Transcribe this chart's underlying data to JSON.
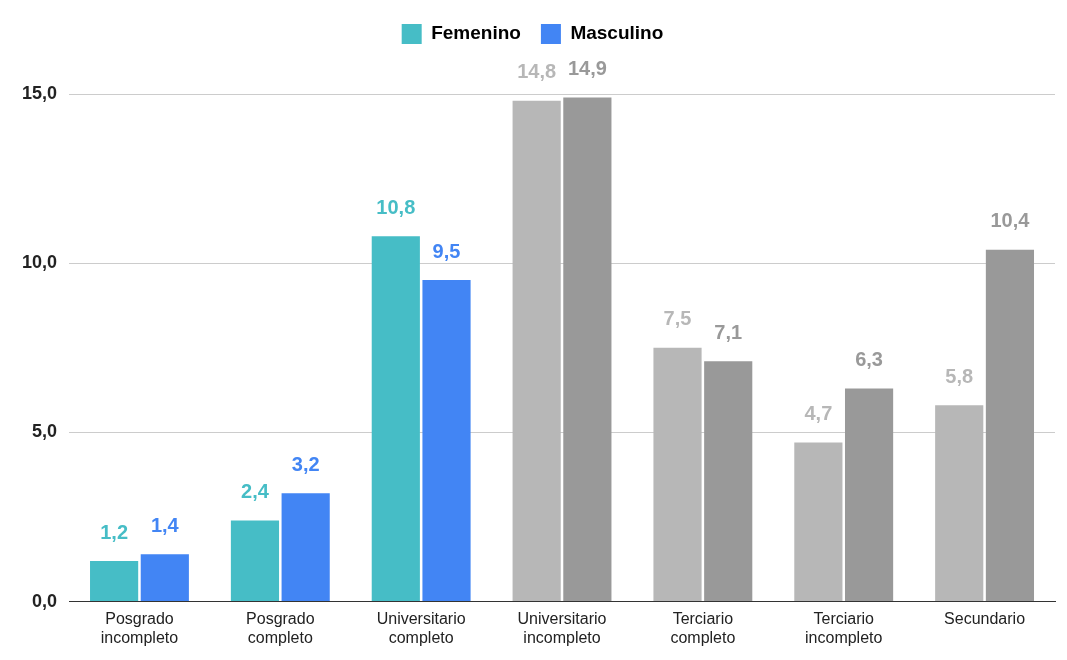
{
  "chart_data": {
    "type": "bar",
    "categories": [
      "Posgrado incompleto",
      "Posgrado completo",
      "Universitario completo",
      "Universitario incompleto",
      "Terciario completo",
      "Terciario incompleto",
      "Secundario"
    ],
    "series": [
      {
        "name": "Femenino",
        "color": "#46bdc6",
        "colors": [
          "#46bdc6",
          "#46bdc6",
          "#46bdc6",
          "#b7b7b7",
          "#b7b7b7",
          "#b7b7b7",
          "#b7b7b7"
        ],
        "values": [
          1.2,
          2.4,
          10.8,
          14.8,
          7.5,
          4.7,
          5.8
        ],
        "value_labels": [
          "1,2",
          "2,4",
          "10,8",
          "14,8",
          "7,5",
          "4,7",
          "5,8"
        ]
      },
      {
        "name": "Masculino",
        "color": "#4285f4",
        "colors": [
          "#4285f4",
          "#4285f4",
          "#4285f4",
          "#999999",
          "#999999",
          "#999999",
          "#999999"
        ],
        "values": [
          1.4,
          3.2,
          9.5,
          14.9,
          7.1,
          6.3,
          10.4
        ],
        "value_labels": [
          "1,4",
          "3,2",
          "9,5",
          "14,9",
          "7,1",
          "6,3",
          "10,4"
        ]
      }
    ],
    "ylim": [
      0,
      15
    ],
    "yticks": [
      {
        "value": 0,
        "label": "0,0"
      },
      {
        "value": 5,
        "label": "5,0"
      },
      {
        "value": 10,
        "label": "10,0"
      },
      {
        "value": 15,
        "label": "15,0"
      }
    ],
    "grid": "y",
    "legend": "top"
  }
}
